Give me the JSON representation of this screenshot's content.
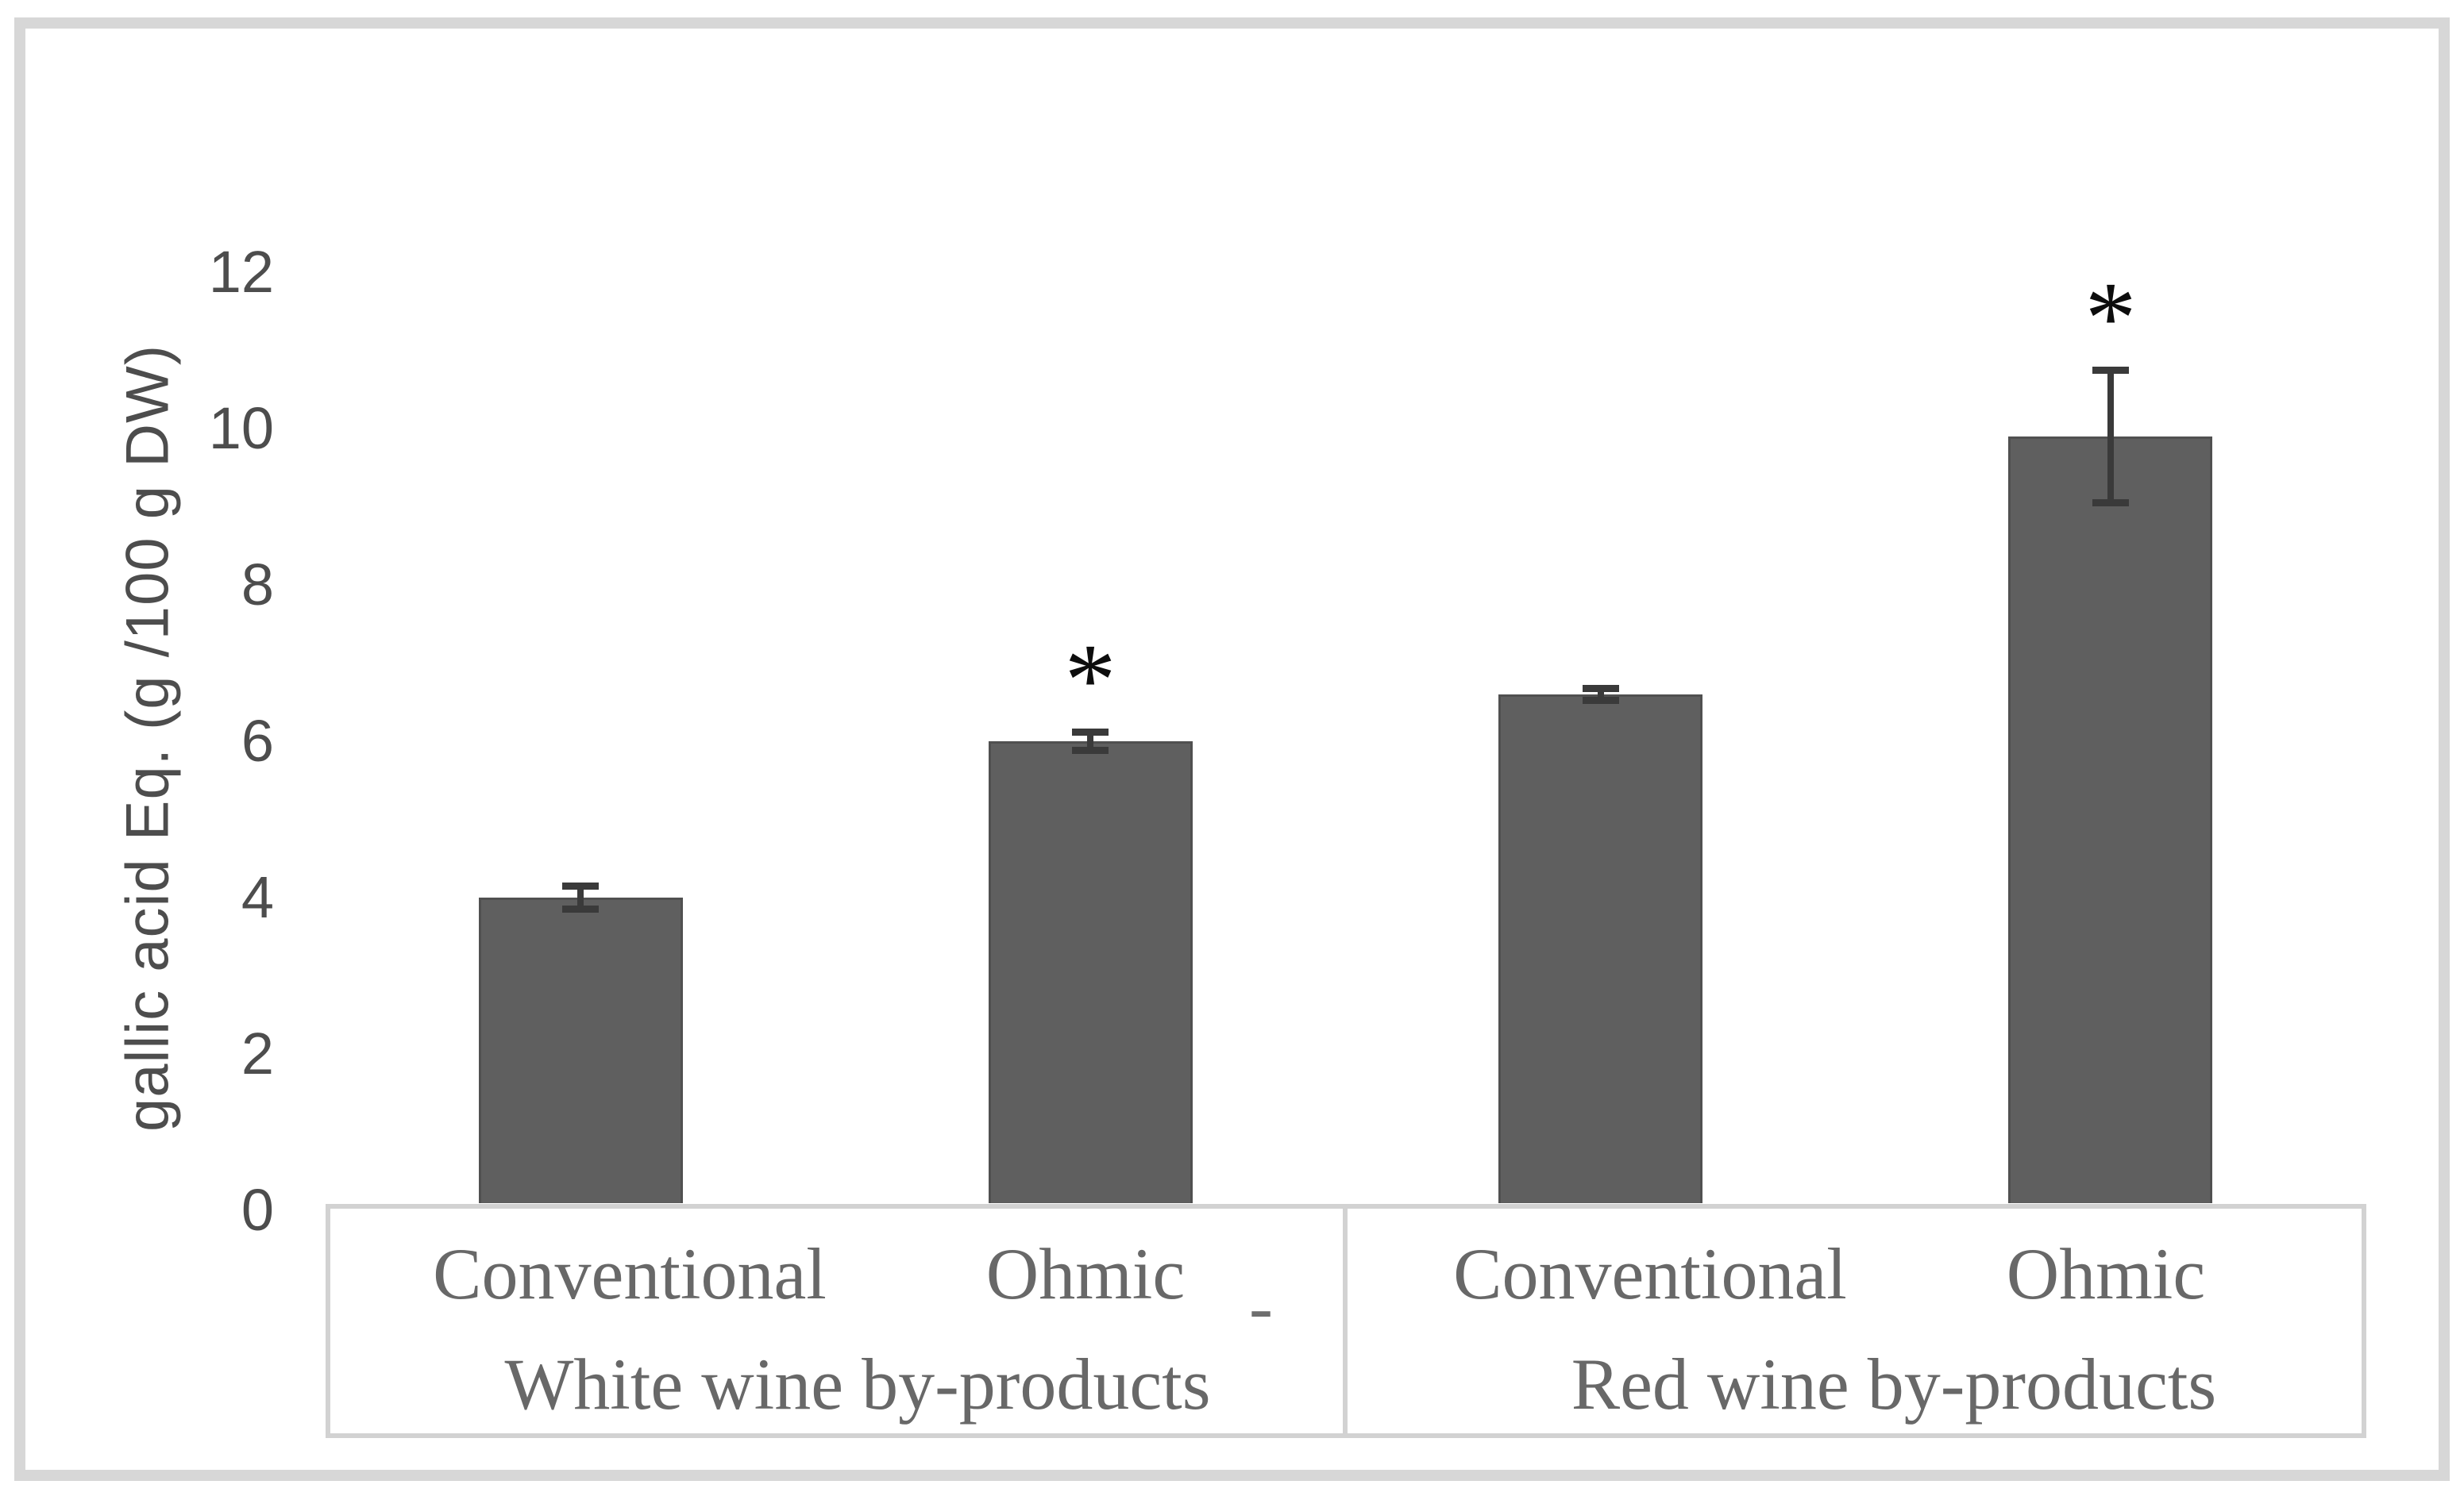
{
  "figure": {
    "background": "#ffffff",
    "frame_color": "#d7d7d7"
  },
  "chart_data": {
    "type": "bar",
    "title": "",
    "xlabel": "",
    "ylabel": "gallic acid Eq. (g /100 g DW)",
    "ylim": [
      0,
      12
    ],
    "yticks": [
      0,
      2,
      4,
      6,
      8,
      10,
      12
    ],
    "grid": false,
    "legend_position": "none",
    "bar_color": "#5f5f5f",
    "error_bar_color": "#3a3a3a",
    "axis_text_color": "#4d4d4d",
    "category_text_color": "#686868",
    "box_line_color": "#d2d2d2",
    "significance_marker": "*",
    "groups": [
      {
        "label": "White wine by-products",
        "bars": [
          {
            "label": "Conventional",
            "value": 4.0,
            "error": 0.15,
            "significant": false
          },
          {
            "label": "Ohmic",
            "value": 6.0,
            "error": 0.12,
            "significant": true
          }
        ]
      },
      {
        "label": "Red wine by-products",
        "bars": [
          {
            "label": "Conventional",
            "value": 6.6,
            "error": 0.08,
            "significant": false
          },
          {
            "label": "Ohmic",
            "value": 9.9,
            "error": 0.85,
            "significant": true
          }
        ]
      }
    ]
  },
  "annotations": {
    "stray_dash": "-"
  }
}
